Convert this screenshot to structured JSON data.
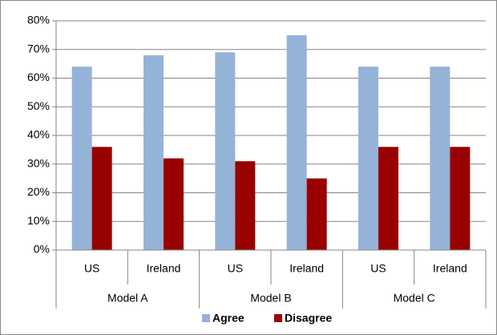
{
  "chart_data": {
    "type": "bar",
    "categories": [
      "US",
      "Ireland",
      "US",
      "Ireland",
      "US",
      "Ireland"
    ],
    "groups": [
      "Model A",
      "Model B",
      "Model C"
    ],
    "series": [
      {
        "name": "Agree",
        "color": "#95b3d7",
        "values": [
          64,
          68,
          69,
          75,
          64,
          64
        ]
      },
      {
        "name": "Disagree",
        "color": "#990000",
        "values": [
          36,
          32,
          31,
          25,
          36,
          36
        ]
      }
    ],
    "ylim": [
      0,
      80
    ],
    "yticks": [
      {
        "value": 0,
        "label": "0%"
      },
      {
        "value": 10,
        "label": "10%"
      },
      {
        "value": 20,
        "label": "20%"
      },
      {
        "value": 30,
        "label": "30%"
      },
      {
        "value": 40,
        "label": "40%"
      },
      {
        "value": 50,
        "label": "50%"
      },
      {
        "value": 60,
        "label": "60%"
      },
      {
        "value": 70,
        "label": "70%"
      },
      {
        "value": 80,
        "label": "80%"
      }
    ],
    "grid": true,
    "legend": "bottom"
  }
}
